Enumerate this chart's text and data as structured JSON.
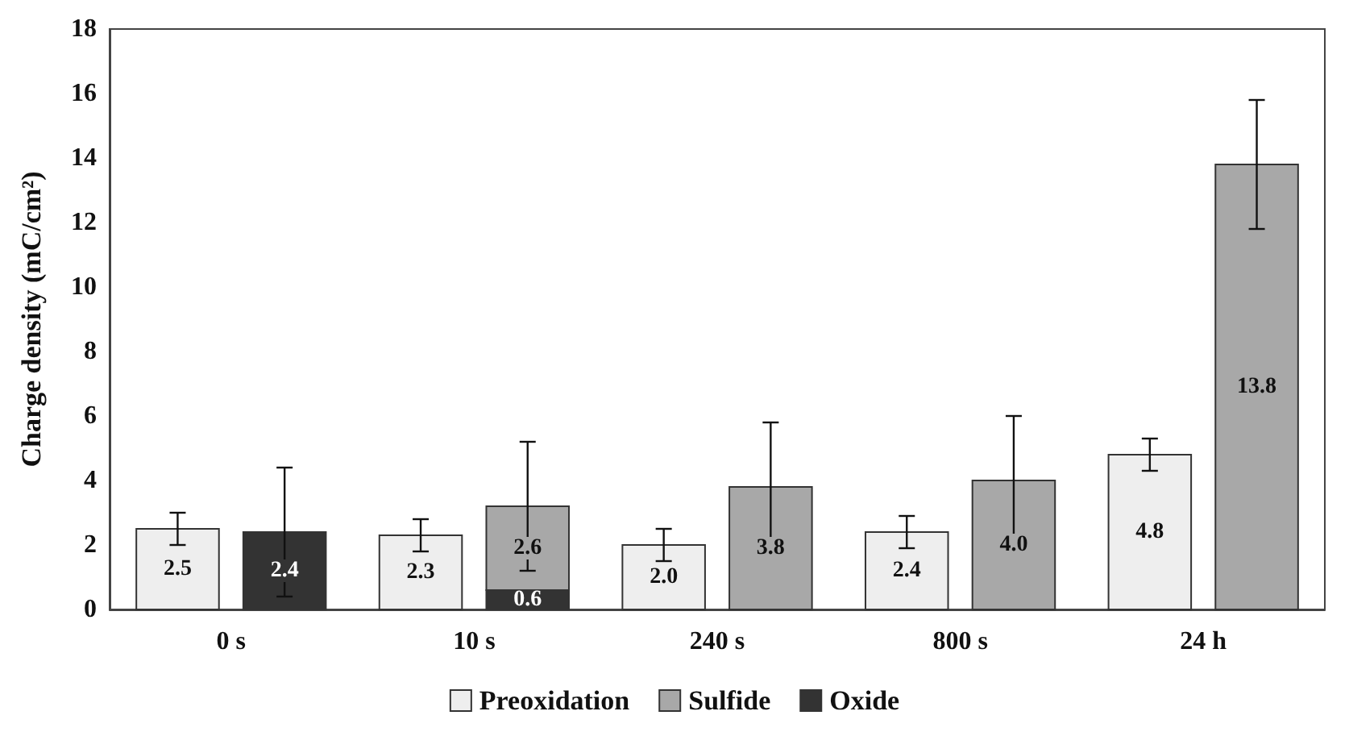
{
  "chart_data": {
    "type": "bar",
    "ylabel": "Charge density (mC/cm²)",
    "categories": [
      "0 s",
      "10 s",
      "240 s",
      "800 s",
      "24 h"
    ],
    "series": [
      {
        "name": "Preoxidation",
        "color": "#eeeeee",
        "values": [
          2.5,
          2.3,
          2.0,
          2.4,
          4.8
        ],
        "errors": [
          0.5,
          0.5,
          0.5,
          0.5,
          0.5
        ],
        "value_labels": [
          "2.5",
          "2.3",
          "2.0",
          "2.4",
          "4.8"
        ]
      },
      {
        "name": "Sulfide",
        "color": "#a8a8a8",
        "values": [
          null,
          2.6,
          3.8,
          4.0,
          13.8
        ],
        "base": [
          null,
          0.6,
          0,
          0,
          0
        ],
        "errors": [
          null,
          2.0,
          2.0,
          2.0,
          2.0
        ],
        "value_labels": [
          null,
          "2.6",
          "3.8",
          "4.0",
          "13.8"
        ]
      },
      {
        "name": "Oxide",
        "color": "#333333",
        "values": [
          2.4,
          0.6,
          null,
          null,
          null
        ],
        "errors": [
          2.0,
          null,
          null,
          null,
          null
        ],
        "value_labels": [
          "2.4",
          "0.6",
          null,
          null,
          null
        ]
      }
    ],
    "ylim": [
      0,
      18
    ],
    "yticks": [
      0,
      2,
      4,
      6,
      8,
      10,
      12,
      14,
      16,
      18
    ],
    "grid": false,
    "legend": "bottom"
  }
}
